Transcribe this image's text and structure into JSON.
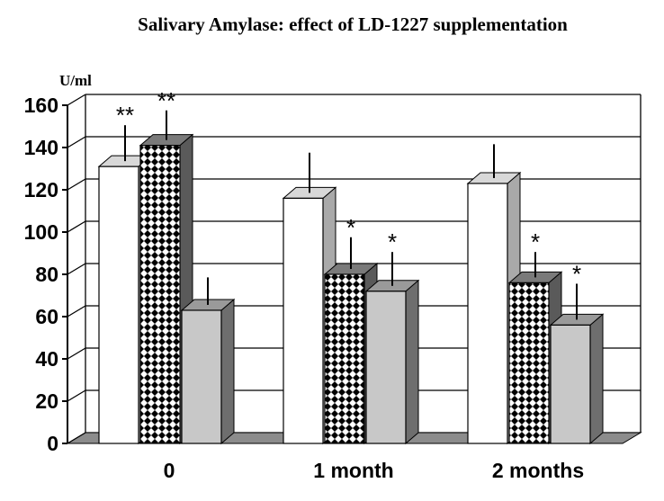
{
  "chart_data": {
    "type": "bar",
    "title": "Salivary Amylase: effect of LD-1227 supplementation",
    "ylabel": "U/ml",
    "xlabel": "",
    "ylim": [
      0,
      160
    ],
    "yticks": [
      "0",
      "20",
      "40",
      "60",
      "80",
      "100",
      "120",
      "140",
      "160"
    ],
    "categories": [
      "0",
      "1 month",
      "2 months"
    ],
    "grid": true,
    "legend": "none",
    "style": "3d",
    "series": [
      {
        "values": [
          131,
          116,
          123
        ],
        "errors": [
          17,
          19,
          16
        ],
        "annotations": [
          "**",
          "",
          ""
        ],
        "pattern": "white",
        "color": "#ffffff"
      },
      {
        "values": [
          141,
          80,
          76
        ],
        "errors": [
          14,
          15,
          12
        ],
        "annotations": [
          "**",
          "*",
          "*"
        ],
        "pattern": "checker",
        "color": "#000000"
      },
      {
        "values": [
          63,
          72,
          56
        ],
        "errors": [
          13,
          16,
          17
        ],
        "annotations": [
          "",
          "*",
          "*"
        ],
        "pattern": "grey",
        "color": "#c8c8c8"
      }
    ]
  }
}
